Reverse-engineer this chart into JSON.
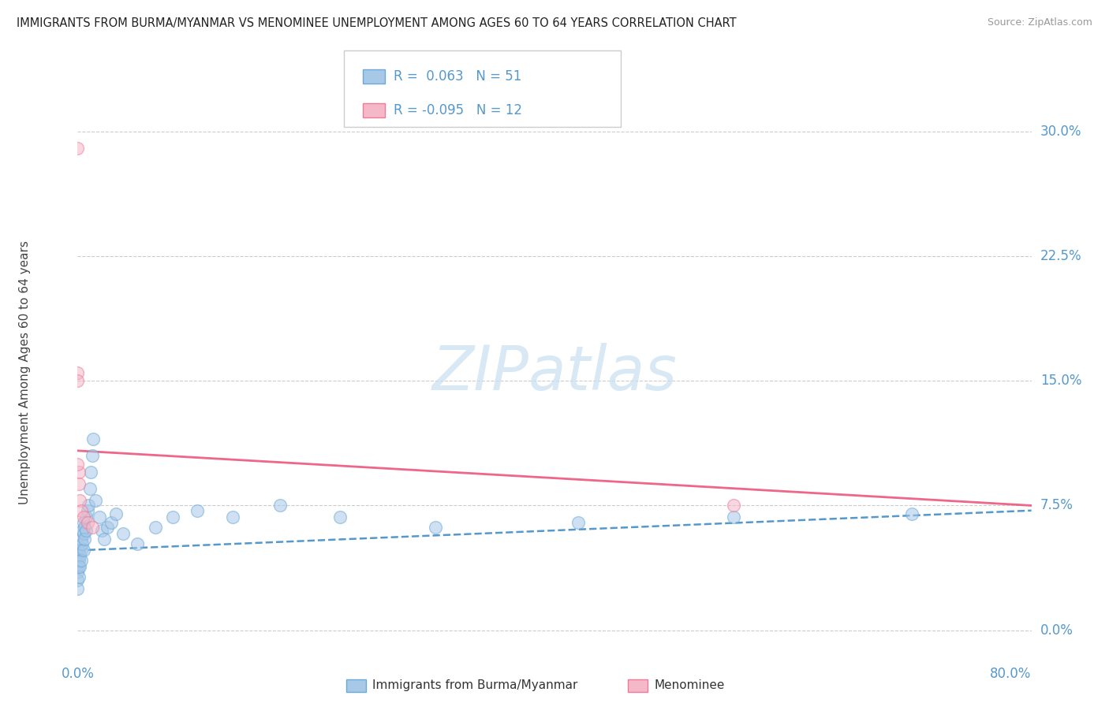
{
  "title": "IMMIGRANTS FROM BURMA/MYANMAR VS MENOMINEE UNEMPLOYMENT AMONG AGES 60 TO 64 YEARS CORRELATION CHART",
  "source": "Source: ZipAtlas.com",
  "ylabel": "Unemployment Among Ages 60 to 64 years",
  "xlim": [
    0.0,
    0.8
  ],
  "ylim": [
    -0.01,
    0.32
  ],
  "yticks": [
    0.0,
    0.075,
    0.15,
    0.225,
    0.3
  ],
  "ytick_labels": [
    "0.0%",
    "7.5%",
    "15.0%",
    "22.5%",
    "30.0%"
  ],
  "xticks": [
    0.0,
    0.8
  ],
  "xtick_labels": [
    "0.0%",
    "80.0%"
  ],
  "grid_color": "#cccccc",
  "background_color": "#ffffff",
  "blue_color": "#a8c8e8",
  "pink_color": "#f4b8c8",
  "blue_edge_color": "#6aaad8",
  "pink_edge_color": "#f07898",
  "blue_line_color": "#5599cc",
  "pink_line_color": "#ee6688",
  "tick_color": "#5599cc",
  "watermark_color": "#c8dff0",
  "R_blue": 0.063,
  "N_blue": 51,
  "R_pink": -0.095,
  "N_pink": 12,
  "blue_scatter_x": [
    0.0,
    0.0,
    0.0,
    0.0,
    0.0,
    0.0,
    0.0,
    0.001,
    0.001,
    0.001,
    0.001,
    0.002,
    0.002,
    0.002,
    0.003,
    0.003,
    0.003,
    0.004,
    0.004,
    0.005,
    0.005,
    0.005,
    0.006,
    0.006,
    0.007,
    0.007,
    0.008,
    0.009,
    0.01,
    0.011,
    0.012,
    0.013,
    0.015,
    0.018,
    0.02,
    0.022,
    0.025,
    0.028,
    0.032,
    0.038,
    0.05,
    0.065,
    0.08,
    0.1,
    0.13,
    0.17,
    0.22,
    0.3,
    0.42,
    0.55,
    0.7
  ],
  "blue_scatter_y": [
    0.05,
    0.045,
    0.04,
    0.038,
    0.035,
    0.03,
    0.025,
    0.048,
    0.042,
    0.038,
    0.032,
    0.05,
    0.045,
    0.038,
    0.055,
    0.048,
    0.042,
    0.06,
    0.052,
    0.065,
    0.058,
    0.048,
    0.062,
    0.055,
    0.068,
    0.06,
    0.072,
    0.075,
    0.085,
    0.095,
    0.105,
    0.115,
    0.078,
    0.068,
    0.06,
    0.055,
    0.062,
    0.065,
    0.07,
    0.058,
    0.052,
    0.062,
    0.068,
    0.072,
    0.068,
    0.075,
    0.068,
    0.062,
    0.065,
    0.068,
    0.07
  ],
  "pink_scatter_x": [
    0.0,
    0.0,
    0.0,
    0.001,
    0.001,
    0.002,
    0.003,
    0.005,
    0.008,
    0.012,
    0.55,
    0.0
  ],
  "pink_scatter_y": [
    0.29,
    0.155,
    0.15,
    0.095,
    0.088,
    0.078,
    0.072,
    0.068,
    0.065,
    0.062,
    0.075,
    0.1
  ],
  "blue_trendline_x": [
    0.0,
    0.8
  ],
  "blue_trendline_y": [
    0.048,
    0.072
  ],
  "pink_trendline_x": [
    0.0,
    0.8
  ],
  "pink_trendline_y": [
    0.108,
    0.075
  ],
  "dot_size": 130,
  "dot_alpha": 0.55
}
